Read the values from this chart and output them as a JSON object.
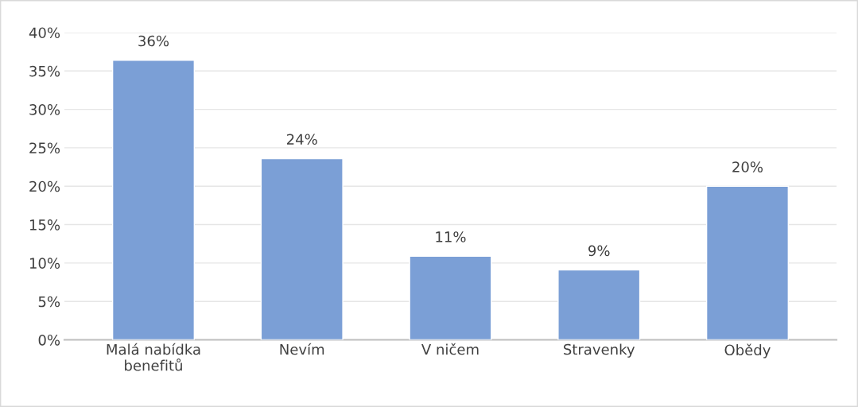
{
  "chart_data": {
    "type": "bar",
    "categories": [
      "Malá nabídka\nbenefitů",
      "Nevím",
      "V ničem",
      "Stravenky",
      "Obědy"
    ],
    "values": [
      36.4,
      23.6,
      10.9,
      9.1,
      20.0
    ],
    "value_labels": [
      "36%",
      "24%",
      "11%",
      "9%",
      "20%"
    ],
    "color": "#7b9fd6",
    "ylim": [
      0,
      40
    ],
    "yticks": [
      {
        "value": 0,
        "label": "0%"
      },
      {
        "value": 5,
        "label": "5%"
      },
      {
        "value": 10,
        "label": "10%"
      },
      {
        "value": 15,
        "label": "15%"
      },
      {
        "value": 20,
        "label": "20%"
      },
      {
        "value": 25,
        "label": "25%"
      },
      {
        "value": 30,
        "label": "30%"
      },
      {
        "value": 35,
        "label": "35%"
      },
      {
        "value": 40,
        "label": "40%"
      }
    ],
    "grid": "y"
  }
}
